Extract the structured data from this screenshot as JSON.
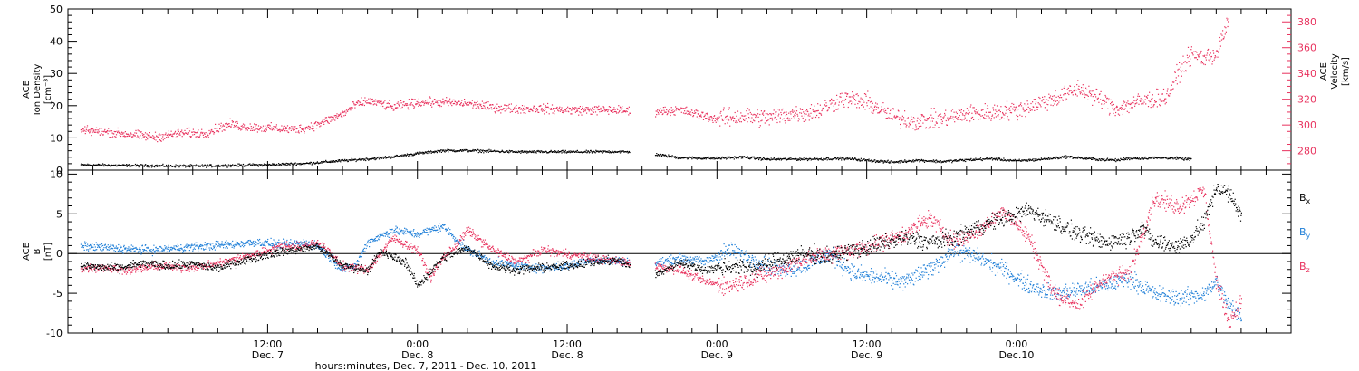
{
  "chart_data": [
    {
      "type": "scatter",
      "panel": "top",
      "left_axis": {
        "labels": [
          "ACE",
          "Ion Density",
          "[cm⁻³]"
        ],
        "ylim": [
          0,
          50
        ],
        "ticks": [
          0,
          10,
          20,
          30,
          40,
          50
        ],
        "color": "#000000"
      },
      "right_axis": {
        "labels": [
          "ACE",
          "Velocity",
          "[km/s]"
        ],
        "ylim": [
          265,
          390
        ],
        "ticks": [
          280,
          300,
          320,
          340,
          360,
          380
        ],
        "color": "#e8315d"
      },
      "series": [
        {
          "axis": "left",
          "color": "#000000",
          "points": [
            [
              -3,
              1.8
            ],
            [
              0,
              1.6
            ],
            [
              3,
              1.5
            ],
            [
              6,
              1.4
            ],
            [
              9,
              1.6
            ],
            [
              12,
              1.8
            ],
            [
              15,
              2.2
            ],
            [
              17,
              2.8
            ],
            [
              20,
              3.6
            ],
            [
              22,
              4.3
            ],
            [
              24,
              5.3
            ],
            [
              26,
              6.2
            ],
            [
              28,
              6.2
            ],
            [
              30,
              6.0
            ],
            [
              32,
              5.8
            ],
            [
              34,
              5.8
            ],
            [
              38,
              5.8
            ],
            [
              40,
              5.9
            ],
            [
              42,
              5.6
            ],
            [
              45,
              4.0
            ],
            [
              48,
              3.8
            ],
            [
              50,
              4.2
            ],
            [
              52,
              3.5
            ],
            [
              56,
              3.6
            ],
            [
              58,
              3.8
            ],
            [
              60,
              3.2
            ],
            [
              62,
              2.6
            ],
            [
              64,
              3.2
            ],
            [
              66,
              2.8
            ],
            [
              68,
              3.3
            ],
            [
              70,
              3.7
            ],
            [
              72,
              3.0
            ],
            [
              74,
              3.5
            ],
            [
              76,
              4.3
            ],
            [
              78,
              3.6
            ],
            [
              80,
              3.2
            ],
            [
              81,
              3.8
            ],
            [
              84,
              4.0
            ],
            [
              86,
              3.5
            ]
          ],
          "gap": [
            41,
            43
          ]
        },
        {
          "axis": "right",
          "color": "#e8315d",
          "points": [
            [
              -3,
              296
            ],
            [
              -1,
              295
            ],
            [
              1,
              293
            ],
            [
              3,
              291
            ],
            [
              5,
              294
            ],
            [
              7,
              294
            ],
            [
              8,
              298
            ],
            [
              9,
              301
            ],
            [
              10,
              299
            ],
            [
              12,
              298
            ],
            [
              14,
              297
            ],
            [
              15,
              298
            ],
            [
              16,
              301
            ],
            [
              17,
              305
            ],
            [
              18,
              309
            ],
            [
              19,
              316
            ],
            [
              20,
              319
            ],
            [
              21,
              317
            ],
            [
              22,
              314
            ],
            [
              24,
              318
            ],
            [
              26,
              318
            ],
            [
              28,
              317
            ],
            [
              30,
              314
            ],
            [
              32,
              313
            ],
            [
              34,
              313
            ],
            [
              36,
              312
            ],
            [
              37,
              312
            ],
            [
              40,
              312
            ],
            [
              41,
              311
            ],
            [
              43,
              311
            ],
            [
              45,
              312
            ],
            [
              48,
              305
            ],
            [
              50,
              307
            ],
            [
              52,
              306
            ],
            [
              54,
              309
            ],
            [
              56,
              311
            ],
            [
              58,
              321
            ],
            [
              60,
              318
            ],
            [
              62,
              307
            ],
            [
              64,
              303
            ],
            [
              66,
              305
            ],
            [
              68,
              309
            ],
            [
              70,
              310
            ],
            [
              72,
              312
            ],
            [
              74,
              318
            ],
            [
              76,
              324
            ],
            [
              77,
              329
            ],
            [
              78,
              324
            ],
            [
              80,
              313
            ],
            [
              82,
              319
            ],
            [
              84,
              322
            ],
            [
              85,
              342
            ],
            [
              86,
              355
            ],
            [
              87,
              352
            ],
            [
              88,
              356
            ],
            [
              89,
              382
            ]
          ],
          "gap": [
            41,
            43
          ]
        }
      ]
    },
    {
      "type": "scatter",
      "panel": "bottom",
      "left_axis": {
        "labels": [
          "ACE",
          "B",
          "[nT]"
        ],
        "ylim": [
          -10,
          10.5
        ],
        "ticks": [
          -10,
          -5,
          0,
          5,
          10
        ]
      },
      "zero_line": true,
      "series": [
        {
          "name": "Bx",
          "label": "B",
          "sub": "x",
          "color": "#000000",
          "points": [
            [
              -3,
              -1.5
            ],
            [
              0,
              -1.8
            ],
            [
              2,
              -1.2
            ],
            [
              4,
              -1.5
            ],
            [
              6,
              -1.3
            ],
            [
              8,
              -1.8
            ],
            [
              10,
              -0.8
            ],
            [
              12,
              0.0
            ],
            [
              14,
              0.5
            ],
            [
              16,
              1.0
            ],
            [
              18,
              -1.5
            ],
            [
              20,
              -2.0
            ],
            [
              21,
              0.3
            ],
            [
              23,
              -1.0
            ],
            [
              24,
              -4.0
            ],
            [
              26,
              -0.5
            ],
            [
              28,
              0.8
            ],
            [
              30,
              -1.5
            ],
            [
              32,
              -2.0
            ],
            [
              34,
              -1.7
            ],
            [
              36,
              -1.5
            ],
            [
              38,
              -1.0
            ],
            [
              40,
              -0.8
            ],
            [
              43,
              -2.7
            ],
            [
              45,
              -1.0
            ],
            [
              47,
              -2.0
            ],
            [
              49,
              -1.5
            ],
            [
              51,
              -1.8
            ],
            [
              53,
              -0.7
            ],
            [
              55,
              0.0
            ],
            [
              57,
              -0.2
            ],
            [
              59,
              0.5
            ],
            [
              61,
              1.2
            ],
            [
              63,
              2.0
            ],
            [
              65,
              1.5
            ],
            [
              67,
              2.0
            ],
            [
              69,
              3.5
            ],
            [
              71,
              4.5
            ],
            [
              73,
              5.5
            ],
            [
              75,
              4.0
            ],
            [
              77,
              2.5
            ],
            [
              79,
              1.5
            ],
            [
              81,
              2.0
            ],
            [
              82,
              3.5
            ],
            [
              83,
              1.5
            ],
            [
              85,
              1.0
            ],
            [
              86,
              2.0
            ],
            [
              87,
              4.0
            ],
            [
              88,
              8.5
            ],
            [
              89,
              7.5
            ],
            [
              90,
              5.0
            ]
          ],
          "gap": [
            41,
            43
          ]
        },
        {
          "name": "By",
          "label": "B",
          "sub": "y",
          "color": "#1f7fd8",
          "points": [
            [
              -3,
              1.0
            ],
            [
              -1,
              0.8
            ],
            [
              1,
              0.6
            ],
            [
              3,
              0.5
            ],
            [
              5,
              0.8
            ],
            [
              7,
              1.0
            ],
            [
              9,
              1.2
            ],
            [
              11,
              1.5
            ],
            [
              13,
              1.2
            ],
            [
              15,
              1.4
            ],
            [
              16,
              1.0
            ],
            [
              18,
              -2.0
            ],
            [
              19,
              -1.5
            ],
            [
              20,
              1.5
            ],
            [
              22,
              3.0
            ],
            [
              24,
              2.5
            ],
            [
              26,
              3.5
            ],
            [
              27,
              2.0
            ],
            [
              28,
              0.5
            ],
            [
              30,
              -1.0
            ],
            [
              32,
              -1.5
            ],
            [
              34,
              -1.8
            ],
            [
              36,
              -1.5
            ],
            [
              38,
              -0.7
            ],
            [
              43,
              -1.2
            ],
            [
              45,
              -0.5
            ],
            [
              47,
              -1.0
            ],
            [
              49,
              0.5
            ],
            [
              51,
              -0.8
            ],
            [
              53,
              -2.0
            ],
            [
              55,
              -1.5
            ],
            [
              57,
              0.0
            ],
            [
              59,
              -2.5
            ],
            [
              61,
              -3.0
            ],
            [
              63,
              -3.5
            ],
            [
              65,
              -2.0
            ],
            [
              67,
              0.5
            ],
            [
              69,
              -0.5
            ],
            [
              71,
              -2.0
            ],
            [
              73,
              -4.0
            ],
            [
              75,
              -5.0
            ],
            [
              77,
              -4.5
            ],
            [
              79,
              -4.0
            ],
            [
              81,
              -3.0
            ],
            [
              83,
              -5.0
            ],
            [
              85,
              -5.5
            ],
            [
              87,
              -5.0
            ],
            [
              88,
              -3.5
            ],
            [
              89,
              -6.5
            ],
            [
              90,
              -8.0
            ]
          ],
          "gap": [
            41,
            43
          ]
        },
        {
          "name": "Bz",
          "label": "B",
          "sub": "z",
          "color": "#e8315d",
          "points": [
            [
              -3,
              -1.8
            ],
            [
              -1,
              -1.7
            ],
            [
              1,
              -2.0
            ],
            [
              3,
              -1.5
            ],
            [
              5,
              -1.7
            ],
            [
              7,
              -1.5
            ],
            [
              9,
              -0.8
            ],
            [
              11,
              0.0
            ],
            [
              13,
              1.0
            ],
            [
              15,
              1.0
            ],
            [
              16,
              1.5
            ],
            [
              18,
              -1.5
            ],
            [
              19,
              -1.8
            ],
            [
              20,
              -2.0
            ],
            [
              22,
              2.0
            ],
            [
              24,
              0.5
            ],
            [
              25,
              -3.0
            ],
            [
              26,
              -0.5
            ],
            [
              27,
              1.0
            ],
            [
              28,
              3.0
            ],
            [
              30,
              0.5
            ],
            [
              32,
              -1.0
            ],
            [
              34,
              0.5
            ],
            [
              36,
              0.0
            ],
            [
              38,
              -0.5
            ],
            [
              43,
              -1.5
            ],
            [
              45,
              -2.0
            ],
            [
              47,
              -3.5
            ],
            [
              49,
              -4.0
            ],
            [
              51,
              -3.0
            ],
            [
              53,
              -2.0
            ],
            [
              55,
              -0.5
            ],
            [
              57,
              0.0
            ],
            [
              59,
              0.5
            ],
            [
              61,
              1.5
            ],
            [
              63,
              2.5
            ],
            [
              65,
              4.5
            ],
            [
              67,
              1.5
            ],
            [
              69,
              3.0
            ],
            [
              71,
              5.5
            ],
            [
              73,
              2.0
            ],
            [
              75,
              -5.0
            ],
            [
              77,
              -6.5
            ],
            [
              79,
              -3.0
            ],
            [
              81,
              -2.5
            ],
            [
              83,
              7.0
            ],
            [
              85,
              6.0
            ],
            [
              87,
              8.0
            ],
            [
              88,
              -3.5
            ],
            [
              89,
              -8.5
            ],
            [
              90,
              -6.0
            ]
          ],
          "gap": [
            41,
            43
          ]
        }
      ]
    }
  ],
  "x_axis": {
    "xlim": [
      -4,
      94
    ],
    "ticks": [
      {
        "hours": 12,
        "time": "12:00",
        "day": "Dec. 7"
      },
      {
        "hours": 24,
        "time": "0:00",
        "day": "Dec. 8"
      },
      {
        "hours": 36,
        "time": "12:00",
        "day": "Dec. 8"
      },
      {
        "hours": 48,
        "time": "0:00",
        "day": "Dec. 9"
      },
      {
        "hours": 60,
        "time": "12:00",
        "day": "Dec. 9"
      },
      {
        "hours": 72,
        "time": "0:00",
        "day": "Dec.10"
      }
    ],
    "title": "hours:minutes, Dec.  7, 2011 - Dec. 10, 2011"
  }
}
